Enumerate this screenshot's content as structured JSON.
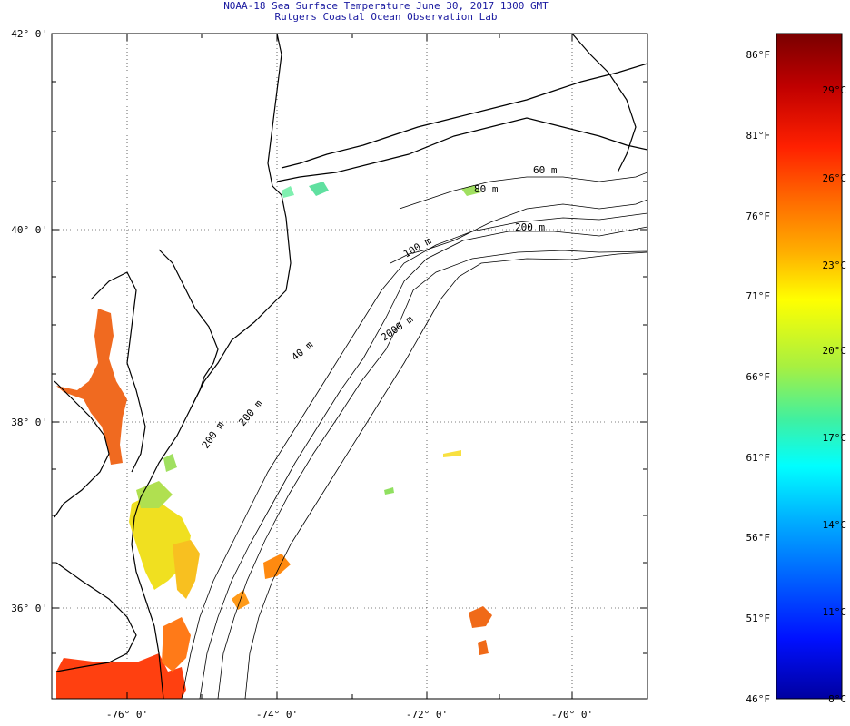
{
  "header": {
    "title": "NOAA-18 Sea Surface Temperature June 30, 2017 1300 GMT",
    "subtitle": "Rutgers Coastal Ocean Observation Lab"
  },
  "map": {
    "lat_labels": [
      "42° 0'",
      "40° 0'",
      "38° 0'",
      "36° 0'"
    ],
    "lon_labels": [
      "-76° 0'",
      "-74° 0'",
      "-72° 0'",
      "-70° 0'"
    ],
    "contour_labels": [
      "60 m",
      "80 m",
      "200 m",
      "100 m",
      "2000 m",
      "40 m",
      "200 m",
      "200 m"
    ]
  },
  "colorbar": {
    "fahrenheit_labels": [
      "86°F",
      "81°F",
      "76°F",
      "71°F",
      "66°F",
      "61°F",
      "56°F",
      "51°F",
      "46°F"
    ],
    "celsius_labels": [
      "29°C",
      "26°C",
      "23°C",
      "20°C",
      "17°C",
      "14°C",
      "11°C",
      "8°C"
    ],
    "colors": [
      "#7a0000",
      "#c00000",
      "#ff2000",
      "#ff6a00",
      "#ffb000",
      "#ffff00",
      "#a8f040",
      "#40f0a0",
      "#00ffff",
      "#00b0ff",
      "#0060ff",
      "#0010ff",
      "#0000a0"
    ]
  }
}
